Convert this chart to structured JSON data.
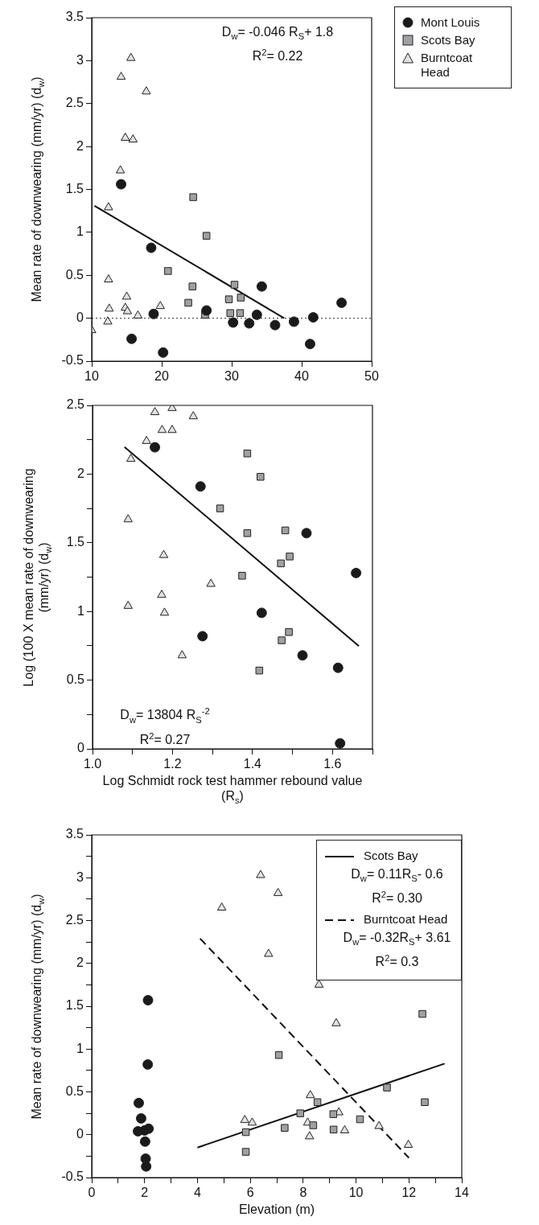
{
  "chart_data": [
    {
      "type": "scatter",
      "ylabel": "Mean rate of downwearing (mm/yr) (d$_{w}$)",
      "legend": "right",
      "xlim": [
        10,
        50
      ],
      "xticks": [
        10,
        20,
        30,
        40,
        50
      ],
      "ylim": [
        -0.5,
        3.5
      ],
      "yticks": [
        -0.5,
        0,
        0.5,
        1,
        1.5,
        2,
        2.5,
        3,
        3.5
      ],
      "annotations": [
        "D$_{w}$= -0.046 R$_{S}$+ 1.8",
        "R$^{2}$= 0.22"
      ],
      "ref_lines": [
        {
          "axis": "y",
          "value": 0,
          "color": "#333333",
          "line_style": "dotted"
        }
      ],
      "series": [
        {
          "name": "Mont Louis",
          "color": "#1a1a1a",
          "marker": "circle",
          "x": [
            14.2,
            18.5,
            18.85,
            15.7,
            20.2,
            26.4,
            30.2,
            32.5,
            33.6,
            34.3,
            36.2,
            38.9,
            41.65,
            41.2,
            45.7
          ],
          "values": [
            1.56,
            0.82,
            0.05,
            -0.24,
            -0.4,
            0.09,
            -0.05,
            -0.06,
            0.04,
            0.37,
            -0.08,
            -0.04,
            0.01,
            -0.3,
            0.18
          ]
        },
        {
          "name": "Scots Bay",
          "color": "#a0a0a4",
          "marker": "square",
          "x": [
            24.5,
            26.4,
            20.9,
            24.4,
            23.8,
            26.2,
            30.4,
            29.6,
            31.3,
            29.8,
            31.2
          ],
          "values": [
            1.41,
            0.96,
            0.55,
            0.37,
            0.18,
            0.04,
            0.39,
            0.22,
            0.24,
            0.06,
            0.06
          ]
        },
        {
          "name": "Burntcoat Head",
          "color": "#e2e2e2",
          "marker": "triangle",
          "x": [
            15.6,
            14.2,
            17.8,
            14.8,
            15.9,
            14.1,
            12.4,
            12.4,
            15.0,
            12.5,
            14.8,
            15.1,
            19.8,
            16.6,
            12.3,
            10.0
          ],
          "values": [
            3.03,
            2.81,
            2.64,
            2.1,
            2.08,
            1.72,
            1.29,
            0.45,
            0.25,
            0.11,
            0.12,
            0.08,
            0.14,
            0.03,
            -0.04,
            -0.14
          ]
        },
        {
          "type": "line",
          "color": "#111111",
          "line_style": "solid",
          "x": [
            10.4,
            37.5
          ],
          "values": [
            1.31,
            0
          ]
        }
      ]
    },
    {
      "type": "scatter",
      "xlabel": "Log Schmidt rock test hammer rebound value (R$_{s}$)",
      "ylabel": "Log (100 X mean rate of downwearing (mm/yr) (d$_{w}$)",
      "xlim": [
        1.0,
        1.7
      ],
      "xticks": [
        {
          "value": 1.0,
          "label": "1.0"
        },
        {
          "value": 1.1,
          "label": null
        },
        {
          "value": 1.2,
          "label": "1.2"
        },
        {
          "value": 1.3,
          "label": null
        },
        {
          "value": 1.4,
          "label": "1.4"
        },
        {
          "value": 1.5,
          "label": null
        },
        {
          "value": 1.6,
          "label": "1.6"
        },
        {
          "value": 1.7,
          "label": null
        }
      ],
      "ylim": [
        0,
        2.5
      ],
      "yticks": [
        0,
        {
          "value": 0.25,
          "label": null
        },
        0.5,
        {
          "value": 0.75,
          "label": null
        },
        1,
        {
          "value": 1.25,
          "label": null
        },
        1.5,
        {
          "value": 1.75,
          "label": null
        },
        2,
        {
          "value": 2.25,
          "label": null
        },
        2.5
      ],
      "annotations": [
        "D$_{w}$= 13804 R$_{S}$$^{-2}$",
        "R$^{2}$= 0.27"
      ],
      "series": [
        {
          "color": "#1a1a1a",
          "marker": "circle",
          "x": [
            1.156,
            1.27,
            1.535,
            1.659,
            1.423,
            1.275,
            1.525,
            1.614,
            1.619
          ],
          "values": [
            2.195,
            1.91,
            1.57,
            1.28,
            0.99,
            0.82,
            0.68,
            0.59,
            0.04
          ]
        },
        {
          "color": "#a0a0a4",
          "marker": "square",
          "x": [
            1.387,
            1.42,
            1.319,
            1.387,
            1.482,
            1.493,
            1.471,
            1.374,
            1.491,
            1.473,
            1.417
          ],
          "values": [
            2.15,
            1.98,
            1.75,
            1.57,
            1.59,
            1.4,
            1.35,
            1.26,
            0.85,
            0.79,
            0.57
          ]
        },
        {
          "color": "#e2e2e2",
          "marker": "triangle",
          "x": [
            1.156,
            1.199,
            1.252,
            1.174,
            1.199,
            1.135,
            1.096,
            1.089,
            1.178,
            1.296,
            1.173,
            1.089,
            1.18,
            1.224
          ],
          "values": [
            2.45,
            2.48,
            2.42,
            2.32,
            2.32,
            2.24,
            2.11,
            1.67,
            1.41,
            1.2,
            1.12,
            1.04,
            0.99,
            0.68
          ]
        },
        {
          "type": "line",
          "color": "#111111",
          "line_style": "solid",
          "x": [
            1.08,
            1.666
          ],
          "values": [
            2.197,
            0.748
          ]
        }
      ]
    },
    {
      "type": "scatter",
      "xlabel": "Elevation (m)",
      "ylabel": "Mean rate of downwearing (mm/yr) (d$_{w}$)",
      "legend": "top right",
      "xlim": [
        0,
        14
      ],
      "xticks": [
        0,
        {
          "value": 1,
          "label": null
        },
        2,
        {
          "value": 3,
          "label": null
        },
        4,
        {
          "value": 5,
          "label": null
        },
        6,
        {
          "value": 7,
          "label": null
        },
        8,
        {
          "value": 9,
          "label": null
        },
        10,
        {
          "value": 11,
          "label": null
        },
        12,
        {
          "value": 13,
          "label": null
        },
        14
      ],
      "ylim": [
        -0.5,
        3.5
      ],
      "yticks": [
        -0.5,
        {
          "value": -0.25,
          "label": null
        },
        0,
        {
          "value": 0.25,
          "label": null
        },
        0.5,
        {
          "value": 0.75,
          "label": null
        },
        1,
        {
          "value": 1.25,
          "label": null
        },
        1.5,
        {
          "value": 1.75,
          "label": null
        },
        2,
        {
          "value": 2.25,
          "label": null
        },
        2.5,
        {
          "value": 2.75,
          "label": null
        },
        3,
        {
          "value": 3.25,
          "label": null
        },
        3.5
      ],
      "annotations": [
        "D$_{w}$= 0.11R$_{S}$- 0.6",
        "R$^{2}$= 0.30",
        "D$_{w}$= -0.32R$_{S}$+ 3.61",
        "R$^{2}$= 0.3"
      ],
      "series": [
        {
          "color": "#1a1a1a",
          "marker": "circle",
          "x": [
            2.13,
            2.12,
            1.78,
            1.87,
            1.75,
            2.15,
            2.0,
            2.02,
            2.04,
            2.06
          ],
          "values": [
            1.57,
            0.82,
            0.37,
            0.19,
            0.04,
            0.07,
            0.05,
            -0.08,
            -0.28,
            -0.37
          ]
        },
        {
          "color": "#a0a0a4",
          "marker": "square",
          "x": [
            12.51,
            7.08,
            11.17,
            12.6,
            8.54,
            7.89,
            9.14,
            10.15,
            8.38,
            7.3,
            9.15,
            5.83,
            5.83
          ],
          "values": [
            1.41,
            0.93,
            0.55,
            0.38,
            0.38,
            0.25,
            0.24,
            0.18,
            0.11,
            0.08,
            0.06,
            0.03,
            -0.2
          ]
        },
        {
          "color": "#e2e2e2",
          "marker": "triangle",
          "x": [
            6.39,
            7.05,
            4.92,
            6.69,
            8.6,
            9.25,
            8.27,
            9.35,
            5.79,
            6.07,
            8.17,
            10.87,
            9.57,
            8.24,
            11.98
          ],
          "values": [
            3.03,
            2.82,
            2.65,
            2.11,
            1.75,
            1.3,
            0.46,
            0.26,
            0.17,
            0.14,
            0.14,
            0.1,
            0.05,
            -0.02,
            -0.12
          ]
        },
        {
          "type": "line",
          "name": "Scots Bay",
          "color": "#111111",
          "line_style": "solid",
          "x": [
            4.0,
            13.35
          ],
          "values": [
            -0.15,
            0.83
          ]
        },
        {
          "type": "line",
          "name": "Burntcoat Head",
          "color": "#111111",
          "line_style": "dashed",
          "x": [
            4.1,
            12.0
          ],
          "values": [
            2.29,
            -0.27
          ]
        }
      ]
    }
  ]
}
